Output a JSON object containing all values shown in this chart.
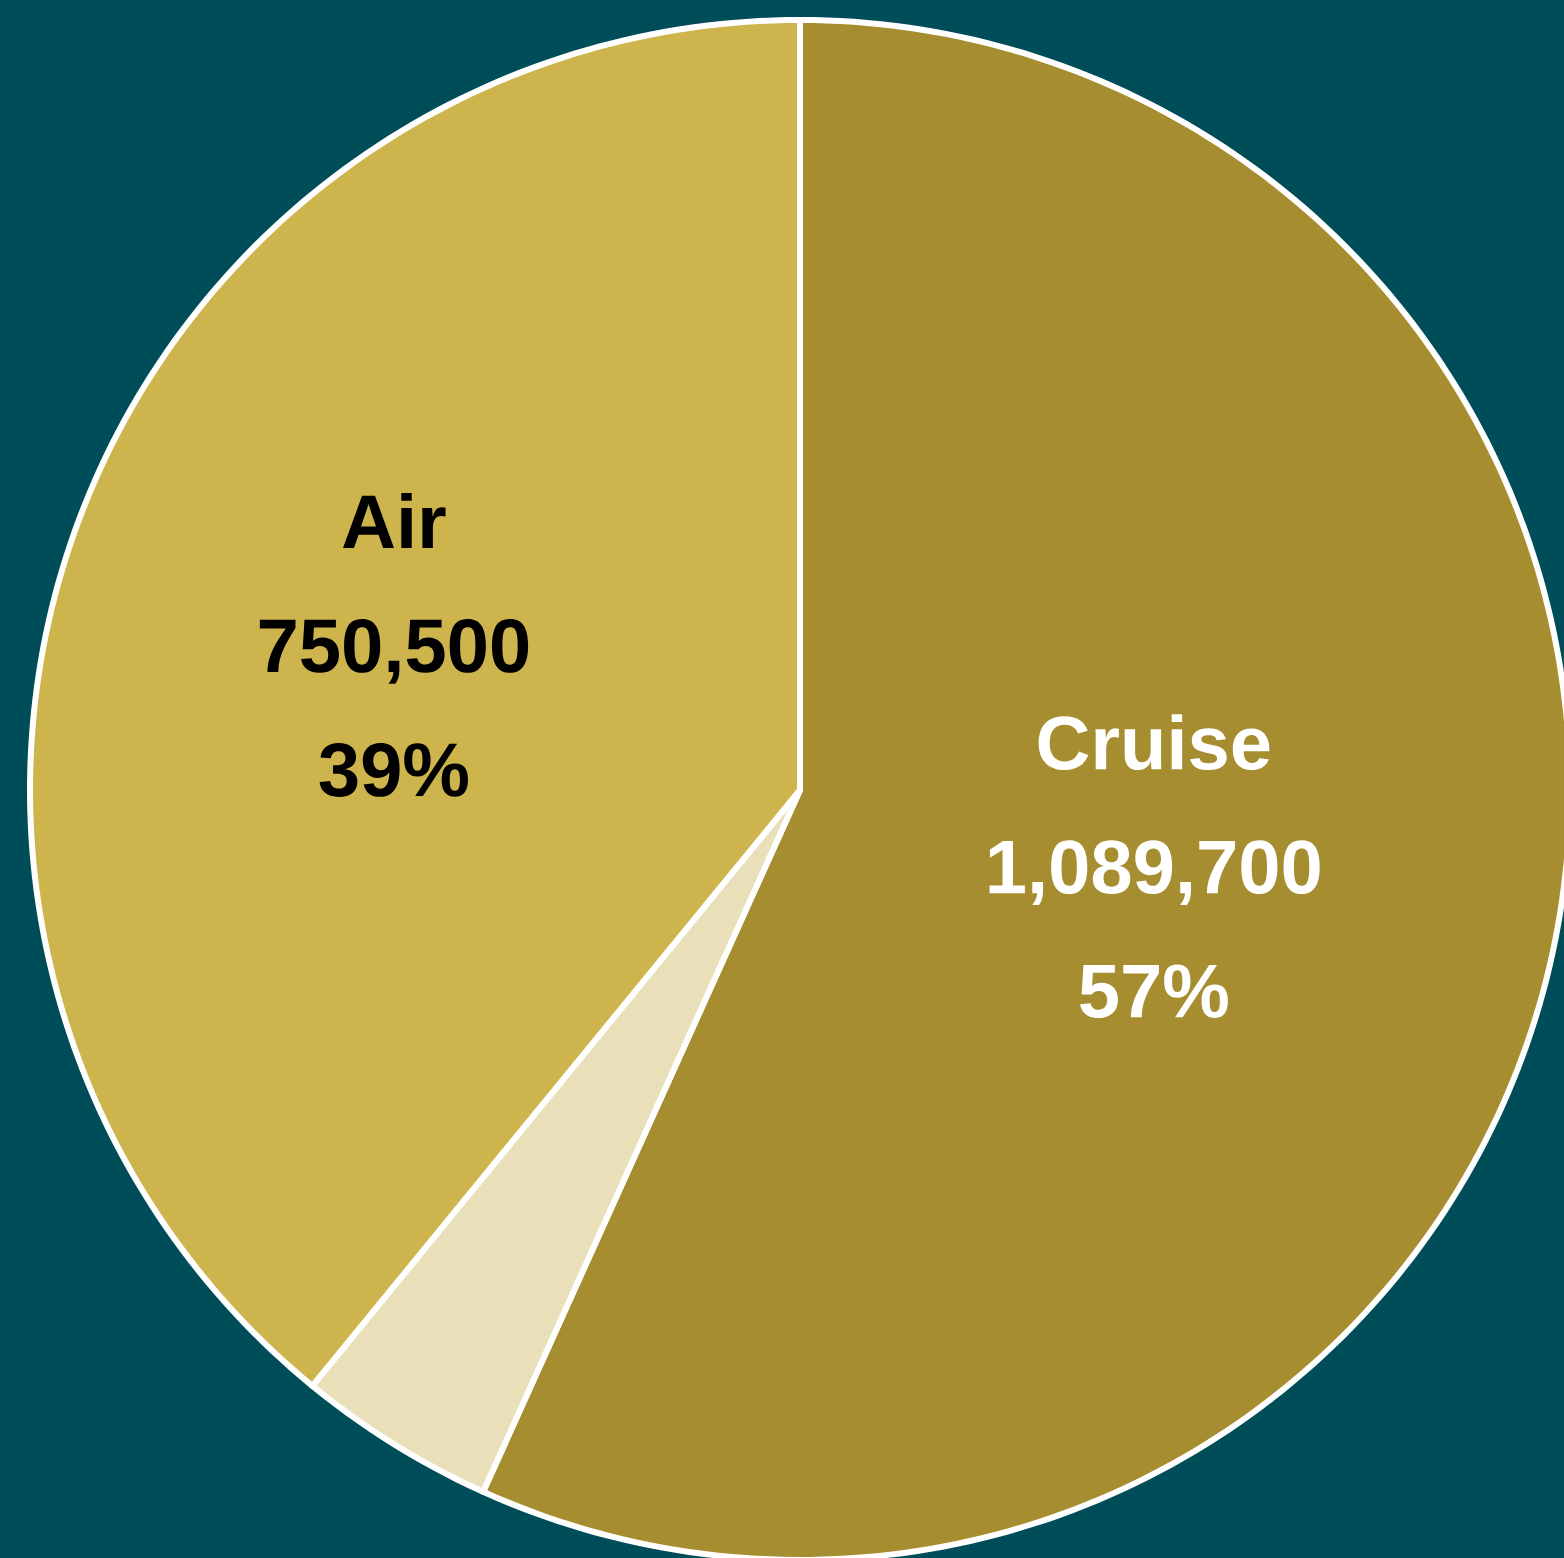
{
  "chart_data": {
    "type": "pie",
    "categories": [
      "Cruise",
      null,
      "Air"
    ],
    "values": [
      1089700,
      80000,
      750500
    ],
    "colors": [
      "#a68d30",
      "#e9e0b9",
      "#cdb44d"
    ],
    "value_labels": [
      "1,089,700",
      null,
      "750,500"
    ],
    "annotations": [
      "57%",
      "39%"
    ]
  }
}
